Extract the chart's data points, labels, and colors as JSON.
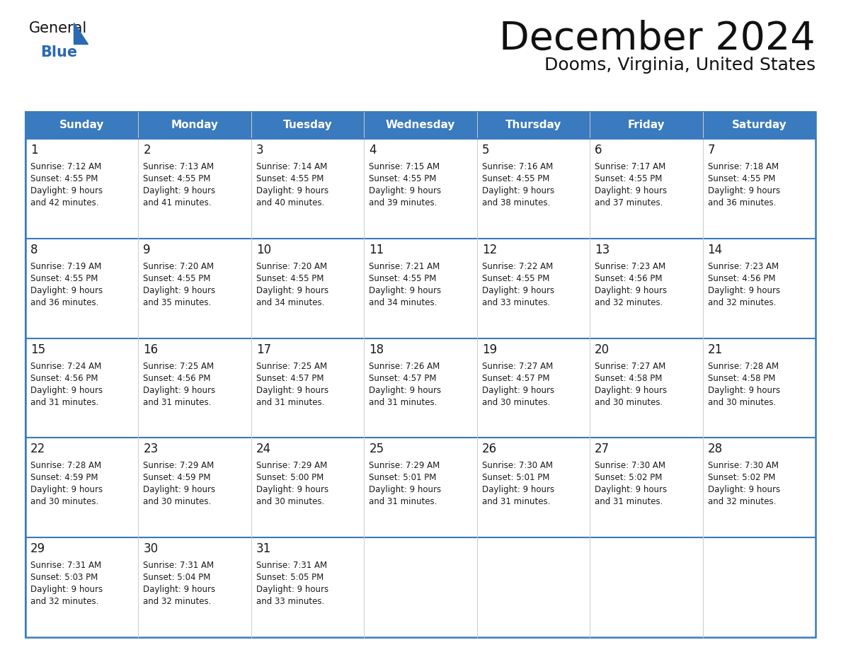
{
  "title": "December 2024",
  "subtitle": "Dooms, Virginia, United States",
  "header_bg": "#3a7abf",
  "header_text_color": "#ffffff",
  "cell_bg": "#f0f0f0",
  "border_color": "#3a7abf",
  "text_color": "#1a1a1a",
  "logo_blue": "#2a6ab0",
  "days_of_week": [
    "Sunday",
    "Monday",
    "Tuesday",
    "Wednesday",
    "Thursday",
    "Friday",
    "Saturday"
  ],
  "weeks": [
    [
      {
        "day": 1,
        "sunrise": "7:12 AM",
        "sunset": "4:55 PM",
        "daylight": "9 hours",
        "daylight2": "and 42 minutes."
      },
      {
        "day": 2,
        "sunrise": "7:13 AM",
        "sunset": "4:55 PM",
        "daylight": "9 hours",
        "daylight2": "and 41 minutes."
      },
      {
        "day": 3,
        "sunrise": "7:14 AM",
        "sunset": "4:55 PM",
        "daylight": "9 hours",
        "daylight2": "and 40 minutes."
      },
      {
        "day": 4,
        "sunrise": "7:15 AM",
        "sunset": "4:55 PM",
        "daylight": "9 hours",
        "daylight2": "and 39 minutes."
      },
      {
        "day": 5,
        "sunrise": "7:16 AM",
        "sunset": "4:55 PM",
        "daylight": "9 hours",
        "daylight2": "and 38 minutes."
      },
      {
        "day": 6,
        "sunrise": "7:17 AM",
        "sunset": "4:55 PM",
        "daylight": "9 hours",
        "daylight2": "and 37 minutes."
      },
      {
        "day": 7,
        "sunrise": "7:18 AM",
        "sunset": "4:55 PM",
        "daylight": "9 hours",
        "daylight2": "and 36 minutes."
      }
    ],
    [
      {
        "day": 8,
        "sunrise": "7:19 AM",
        "sunset": "4:55 PM",
        "daylight": "9 hours",
        "daylight2": "and 36 minutes."
      },
      {
        "day": 9,
        "sunrise": "7:20 AM",
        "sunset": "4:55 PM",
        "daylight": "9 hours",
        "daylight2": "and 35 minutes."
      },
      {
        "day": 10,
        "sunrise": "7:20 AM",
        "sunset": "4:55 PM",
        "daylight": "9 hours",
        "daylight2": "and 34 minutes."
      },
      {
        "day": 11,
        "sunrise": "7:21 AM",
        "sunset": "4:55 PM",
        "daylight": "9 hours",
        "daylight2": "and 34 minutes."
      },
      {
        "day": 12,
        "sunrise": "7:22 AM",
        "sunset": "4:55 PM",
        "daylight": "9 hours",
        "daylight2": "and 33 minutes."
      },
      {
        "day": 13,
        "sunrise": "7:23 AM",
        "sunset": "4:56 PM",
        "daylight": "9 hours",
        "daylight2": "and 32 minutes."
      },
      {
        "day": 14,
        "sunrise": "7:23 AM",
        "sunset": "4:56 PM",
        "daylight": "9 hours",
        "daylight2": "and 32 minutes."
      }
    ],
    [
      {
        "day": 15,
        "sunrise": "7:24 AM",
        "sunset": "4:56 PM",
        "daylight": "9 hours",
        "daylight2": "and 31 minutes."
      },
      {
        "day": 16,
        "sunrise": "7:25 AM",
        "sunset": "4:56 PM",
        "daylight": "9 hours",
        "daylight2": "and 31 minutes."
      },
      {
        "day": 17,
        "sunrise": "7:25 AM",
        "sunset": "4:57 PM",
        "daylight": "9 hours",
        "daylight2": "and 31 minutes."
      },
      {
        "day": 18,
        "sunrise": "7:26 AM",
        "sunset": "4:57 PM",
        "daylight": "9 hours",
        "daylight2": "and 31 minutes."
      },
      {
        "day": 19,
        "sunrise": "7:27 AM",
        "sunset": "4:57 PM",
        "daylight": "9 hours",
        "daylight2": "and 30 minutes."
      },
      {
        "day": 20,
        "sunrise": "7:27 AM",
        "sunset": "4:58 PM",
        "daylight": "9 hours",
        "daylight2": "and 30 minutes."
      },
      {
        "day": 21,
        "sunrise": "7:28 AM",
        "sunset": "4:58 PM",
        "daylight": "9 hours",
        "daylight2": "and 30 minutes."
      }
    ],
    [
      {
        "day": 22,
        "sunrise": "7:28 AM",
        "sunset": "4:59 PM",
        "daylight": "9 hours",
        "daylight2": "and 30 minutes."
      },
      {
        "day": 23,
        "sunrise": "7:29 AM",
        "sunset": "4:59 PM",
        "daylight": "9 hours",
        "daylight2": "and 30 minutes."
      },
      {
        "day": 24,
        "sunrise": "7:29 AM",
        "sunset": "5:00 PM",
        "daylight": "9 hours",
        "daylight2": "and 30 minutes."
      },
      {
        "day": 25,
        "sunrise": "7:29 AM",
        "sunset": "5:01 PM",
        "daylight": "9 hours",
        "daylight2": "and 31 minutes."
      },
      {
        "day": 26,
        "sunrise": "7:30 AM",
        "sunset": "5:01 PM",
        "daylight": "9 hours",
        "daylight2": "and 31 minutes."
      },
      {
        "day": 27,
        "sunrise": "7:30 AM",
        "sunset": "5:02 PM",
        "daylight": "9 hours",
        "daylight2": "and 31 minutes."
      },
      {
        "day": 28,
        "sunrise": "7:30 AM",
        "sunset": "5:02 PM",
        "daylight": "9 hours",
        "daylight2": "and 32 minutes."
      }
    ],
    [
      {
        "day": 29,
        "sunrise": "7:31 AM",
        "sunset": "5:03 PM",
        "daylight": "9 hours",
        "daylight2": "and 32 minutes."
      },
      {
        "day": 30,
        "sunrise": "7:31 AM",
        "sunset": "5:04 PM",
        "daylight": "9 hours",
        "daylight2": "and 32 minutes."
      },
      {
        "day": 31,
        "sunrise": "7:31 AM",
        "sunset": "5:05 PM",
        "daylight": "9 hours",
        "daylight2": "and 33 minutes."
      },
      null,
      null,
      null,
      null
    ]
  ]
}
